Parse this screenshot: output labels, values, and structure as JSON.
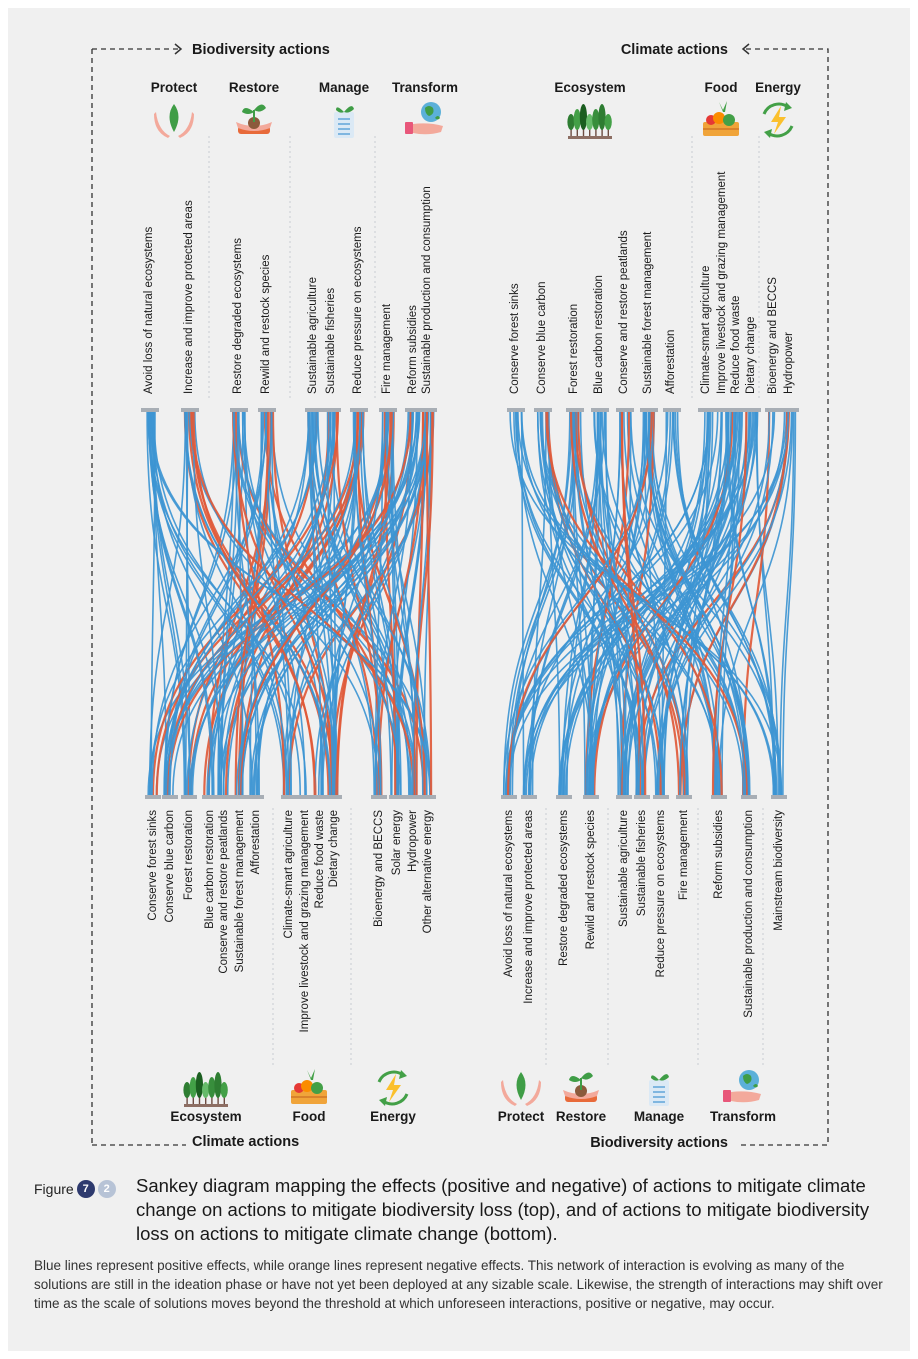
{
  "headers": {
    "top_left": "Biodiversity actions",
    "top_right": "Climate actions",
    "bottom_left": "Climate actions",
    "bottom_right": "Biodiversity actions"
  },
  "top_panel_left": {
    "groups": [
      {
        "name": "Protect",
        "icon": "hands-leaf-icon",
        "labels": [
          "Avoid loss of natural ecosystems",
          "Increase and improve protected areas"
        ]
      },
      {
        "name": "Restore",
        "icon": "hands-seedling-icon",
        "labels": [
          "Restore degraded ecosystems",
          "Rewild and restock species"
        ]
      },
      {
        "name": "Manage",
        "icon": "clipboard-plant-icon",
        "labels": [
          "Sustainable agriculture",
          "Sustainable fisheries",
          "Reduce pressure on ecosystems",
          "Fire management"
        ]
      },
      {
        "name": "Transform",
        "icon": "hand-globe-icon",
        "labels": [
          "Reform subsidies",
          "Sustainable production and consumption"
        ]
      }
    ],
    "bottom_labels": [
      "Conserve forest sinks",
      "Conserve blue carbon",
      "Forest restoration",
      "Blue carbon restoration",
      "Conserve and restore peatlands",
      "Sustainable forest management",
      "Afforestation",
      "Climate-smart agriculture",
      "Improve livestock and grazing management",
      "Reduce food waste",
      "Dietary change",
      "Bioenergy and BECCS",
      "Solar energy",
      "Hydropower",
      "Other alternative energy"
    ],
    "bottom_groups": [
      {
        "name": "Ecosystem",
        "icon": "forest-icon"
      },
      {
        "name": "Food",
        "icon": "food-crate-icon"
      },
      {
        "name": "Energy",
        "icon": "recycle-bolt-icon"
      }
    ]
  },
  "top_panel_right": {
    "groups": [
      {
        "name": "Ecosystem",
        "icon": "forest-icon",
        "labels": [
          "Conserve forest sinks",
          "Conserve blue carbon",
          "Forest restoration",
          "Blue carbon restoration",
          "Conserve and restore peatlands",
          "Sustainable forest management",
          "Afforestation"
        ]
      },
      {
        "name": "Food",
        "icon": "food-crate-icon",
        "labels": [
          "Climate-smart agriculture",
          "Improve livestock and grazing management",
          "Reduce food waste",
          "Dietary change"
        ]
      },
      {
        "name": "Energy",
        "icon": "recycle-bolt-icon",
        "labels": [
          "Bioenergy and BECCS",
          "Hydropower"
        ]
      }
    ],
    "bottom_labels": [
      "Avoid loss of natural ecosystems",
      "Increase and improve protected areas",
      "Restore degraded ecosystems",
      "Rewild and restock species",
      "Sustainable agriculture",
      "Sustainable fisheries",
      "Reduce pressure on ecosystems",
      "Fire management",
      "Reform subsidies",
      "Sustainable production and consumption",
      "Mainstream biodiversity"
    ],
    "bottom_groups": [
      {
        "name": "Protect",
        "icon": "hands-leaf-icon"
      },
      {
        "name": "Restore",
        "icon": "hands-seedling-icon"
      },
      {
        "name": "Manage",
        "icon": "clipboard-plant-icon"
      },
      {
        "name": "Transform",
        "icon": "hand-globe-icon"
      }
    ]
  },
  "colors": {
    "positive": "#3d95d2",
    "negative": "#e05a3a",
    "node_bar": "#a8aeb5",
    "frame_dash": "#333333"
  },
  "caption": {
    "figure_label": "Figure",
    "figure_number": "7",
    "figure_sub": "2",
    "title": "Sankey diagram mapping the effects (positive and negative) of actions to mitigate climate change on actions to mitigate biodiversity loss (top), and of actions to mitigate biodiversity loss on actions to mitigate climate change (bottom).",
    "note": "Blue lines represent positive effects, while orange lines represent negative effects. This network of interaction is evolving as many of the solutions are still in the ideation phase or have not yet been deployed at any sizable scale. Likewise, the strength of interactions may shift over time as the scale of solutions moves beyond the threshold at which unforeseen interactions, positive or negative, may occur."
  }
}
